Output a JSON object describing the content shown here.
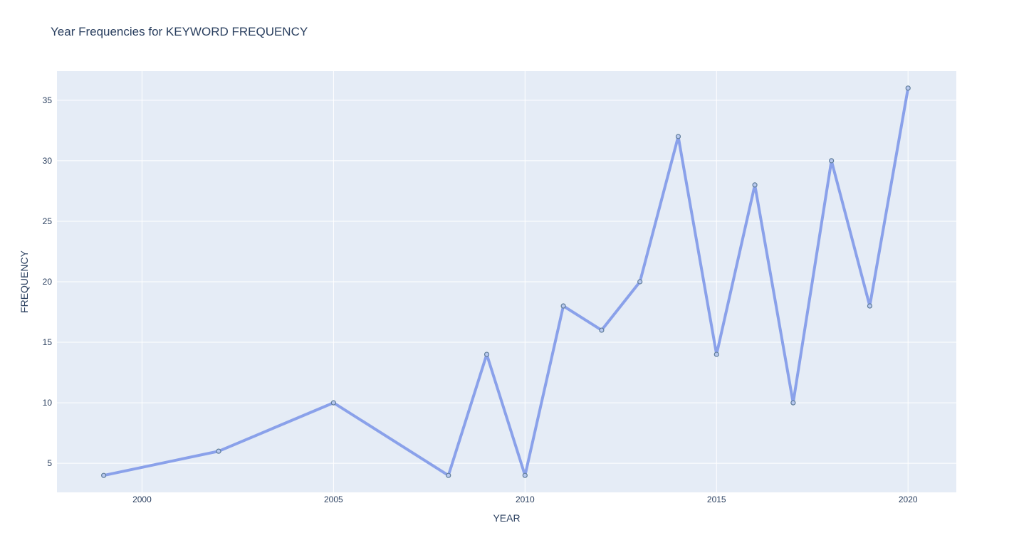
{
  "chart_data": {
    "type": "line",
    "title": "Year Frequencies for KEYWORD FREQUENCY",
    "xlabel": "YEAR",
    "ylabel": "FREQUENCY",
    "x": [
      1999,
      2002,
      2005,
      2008,
      2009,
      2010,
      2011,
      2012,
      2013,
      2014,
      2015,
      2016,
      2017,
      2018,
      2019,
      2020
    ],
    "series": [
      {
        "values": [
          4,
          6,
          10,
          4,
          14,
          4,
          18,
          16,
          20,
          32,
          14,
          28,
          10,
          30,
          18,
          36
        ]
      }
    ],
    "xlim": [
      1997.78,
      2021.26
    ],
    "ylim": [
      2.6,
      37.4
    ],
    "xticks": [
      2000,
      2005,
      2010,
      2015,
      2020
    ],
    "yticks": [
      5,
      10,
      15,
      20,
      25,
      30,
      35
    ],
    "grid": true,
    "legend": false,
    "colors": {
      "plot_bg": "#e5ecf6",
      "grid": "#ffffff",
      "line": "#8aa1ea",
      "marker_fill": "#b9c9f0",
      "marker_edge": "#5f7d9a",
      "text": "#2a3f5f"
    }
  }
}
